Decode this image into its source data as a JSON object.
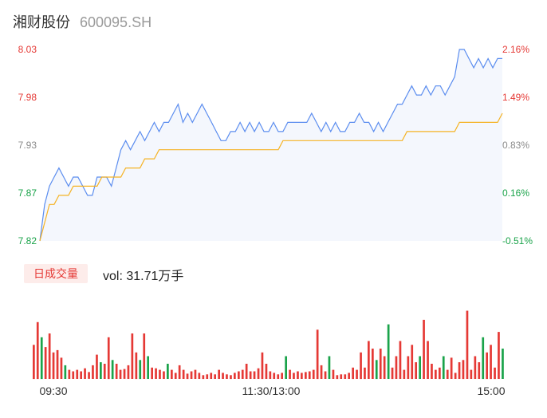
{
  "stock": {
    "name": "湘财股份",
    "code": "600095.SH"
  },
  "colors": {
    "up": "#e53935",
    "down": "#1aa34a",
    "flat": "#8a8a8a",
    "price_line": "#5b8def",
    "avg_line": "#f5b324",
    "area": "#f4f7fd"
  },
  "volume": {
    "tag": "日成交量",
    "label": "vol: 31.71万手"
  },
  "chart_data": {
    "type": "line",
    "y_left_ticks": [
      "8.03",
      "7.98",
      "7.93",
      "7.87",
      "7.82"
    ],
    "y_right_ticks": [
      "2.16%",
      "1.49%",
      "0.83%",
      "0.16%",
      "-0.51%"
    ],
    "y_right_colors": [
      "up",
      "up",
      "flat",
      "down",
      "down"
    ],
    "y_left_colors": [
      "up",
      "up",
      "flat",
      "down",
      "down"
    ],
    "x_ticks": [
      "09:30",
      "11:30/13:00",
      "15:00"
    ],
    "ylim": [
      7.82,
      8.03
    ],
    "series": [
      {
        "values": [
          7.82,
          7.86,
          7.88,
          7.89,
          7.9,
          7.89,
          7.88,
          7.89,
          7.89,
          7.88,
          7.87,
          7.87,
          7.89,
          7.89,
          7.89,
          7.88,
          7.9,
          7.92,
          7.93,
          7.92,
          7.93,
          7.94,
          7.93,
          7.94,
          7.95,
          7.94,
          7.95,
          7.95,
          7.96,
          7.97,
          7.95,
          7.96,
          7.95,
          7.96,
          7.97,
          7.96,
          7.95,
          7.94,
          7.93,
          7.93,
          7.94,
          7.94,
          7.95,
          7.94,
          7.95,
          7.94,
          7.95,
          7.94,
          7.94,
          7.95,
          7.94,
          7.94,
          7.95,
          7.95,
          7.95,
          7.95,
          7.95,
          7.96,
          7.95,
          7.94,
          7.95,
          7.94,
          7.95,
          7.94,
          7.94,
          7.95,
          7.95,
          7.96,
          7.95,
          7.95,
          7.94,
          7.95,
          7.94,
          7.95,
          7.96,
          7.97,
          7.97,
          7.98,
          7.99,
          7.98,
          7.98,
          7.99,
          7.98,
          7.99,
          7.99,
          7.98,
          7.99,
          8.0,
          8.03,
          8.03,
          8.02,
          8.01,
          8.02,
          8.01,
          8.02,
          8.01,
          8.02,
          8.02
        ]
      },
      {
        "values": [
          7.82,
          7.84,
          7.86,
          7.86,
          7.87,
          7.87,
          7.87,
          7.88,
          7.88,
          7.88,
          7.88,
          7.88,
          7.88,
          7.89,
          7.89,
          7.89,
          7.89,
          7.89,
          7.9,
          7.9,
          7.9,
          7.9,
          7.91,
          7.91,
          7.91,
          7.92,
          7.92,
          7.92,
          7.92,
          7.92,
          7.92,
          7.92,
          7.92,
          7.92,
          7.92,
          7.92,
          7.92,
          7.92,
          7.92,
          7.92,
          7.92,
          7.92,
          7.92,
          7.92,
          7.92,
          7.92,
          7.92,
          7.92,
          7.92,
          7.92,
          7.92,
          7.93,
          7.93,
          7.93,
          7.93,
          7.93,
          7.93,
          7.93,
          7.93,
          7.93,
          7.93,
          7.93,
          7.93,
          7.93,
          7.93,
          7.93,
          7.93,
          7.93,
          7.93,
          7.93,
          7.93,
          7.93,
          7.93,
          7.93,
          7.93,
          7.93,
          7.93,
          7.94,
          7.94,
          7.94,
          7.94,
          7.94,
          7.94,
          7.94,
          7.94,
          7.94,
          7.94,
          7.94,
          7.95,
          7.95,
          7.95,
          7.95,
          7.95,
          7.95,
          7.95,
          7.95,
          7.95,
          7.96
        ]
      }
    ],
    "volume_bars": [
      {
        "v": 0.45,
        "c": "up"
      },
      {
        "v": 0.75,
        "c": "up"
      },
      {
        "v": 0.55,
        "c": "down"
      },
      {
        "v": 0.42,
        "c": "up"
      },
      {
        "v": 0.6,
        "c": "up"
      },
      {
        "v": 0.35,
        "c": "up"
      },
      {
        "v": 0.38,
        "c": "up"
      },
      {
        "v": 0.28,
        "c": "up"
      },
      {
        "v": 0.18,
        "c": "down"
      },
      {
        "v": 0.12,
        "c": "up"
      },
      {
        "v": 0.1,
        "c": "up"
      },
      {
        "v": 0.12,
        "c": "up"
      },
      {
        "v": 0.1,
        "c": "up"
      },
      {
        "v": 0.14,
        "c": "up"
      },
      {
        "v": 0.09,
        "c": "up"
      },
      {
        "v": 0.18,
        "c": "up"
      },
      {
        "v": 0.32,
        "c": "up"
      },
      {
        "v": 0.22,
        "c": "down"
      },
      {
        "v": 0.2,
        "c": "up"
      },
      {
        "v": 0.55,
        "c": "up"
      },
      {
        "v": 0.25,
        "c": "down"
      },
      {
        "v": 0.2,
        "c": "up"
      },
      {
        "v": 0.12,
        "c": "up"
      },
      {
        "v": 0.13,
        "c": "up"
      },
      {
        "v": 0.18,
        "c": "up"
      },
      {
        "v": 0.6,
        "c": "up"
      },
      {
        "v": 0.35,
        "c": "up"
      },
      {
        "v": 0.25,
        "c": "down"
      },
      {
        "v": 0.6,
        "c": "up"
      },
      {
        "v": 0.3,
        "c": "down"
      },
      {
        "v": 0.15,
        "c": "up"
      },
      {
        "v": 0.14,
        "c": "up"
      },
      {
        "v": 0.12,
        "c": "up"
      },
      {
        "v": 0.1,
        "c": "up"
      },
      {
        "v": 0.2,
        "c": "down"
      },
      {
        "v": 0.12,
        "c": "up"
      },
      {
        "v": 0.08,
        "c": "up"
      },
      {
        "v": 0.18,
        "c": "up"
      },
      {
        "v": 0.12,
        "c": "up"
      },
      {
        "v": 0.07,
        "c": "up"
      },
      {
        "v": 0.1,
        "c": "up"
      },
      {
        "v": 0.12,
        "c": "up"
      },
      {
        "v": 0.08,
        "c": "up"
      },
      {
        "v": 0.05,
        "c": "up"
      },
      {
        "v": 0.06,
        "c": "up"
      },
      {
        "v": 0.08,
        "c": "up"
      },
      {
        "v": 0.06,
        "c": "up"
      },
      {
        "v": 0.12,
        "c": "up"
      },
      {
        "v": 0.08,
        "c": "up"
      },
      {
        "v": 0.06,
        "c": "up"
      },
      {
        "v": 0.05,
        "c": "up"
      },
      {
        "v": 0.08,
        "c": "up"
      },
      {
        "v": 0.1,
        "c": "up"
      },
      {
        "v": 0.12,
        "c": "up"
      },
      {
        "v": 0.2,
        "c": "up"
      },
      {
        "v": 0.1,
        "c": "up"
      },
      {
        "v": 0.1,
        "c": "up"
      },
      {
        "v": 0.14,
        "c": "up"
      },
      {
        "v": 0.35,
        "c": "up"
      },
      {
        "v": 0.2,
        "c": "up"
      },
      {
        "v": 0.1,
        "c": "up"
      },
      {
        "v": 0.08,
        "c": "up"
      },
      {
        "v": 0.06,
        "c": "up"
      },
      {
        "v": 0.08,
        "c": "up"
      },
      {
        "v": 0.3,
        "c": "down"
      },
      {
        "v": 0.12,
        "c": "up"
      },
      {
        "v": 0.08,
        "c": "up"
      },
      {
        "v": 0.1,
        "c": "up"
      },
      {
        "v": 0.08,
        "c": "up"
      },
      {
        "v": 0.09,
        "c": "up"
      },
      {
        "v": 0.1,
        "c": "up"
      },
      {
        "v": 0.12,
        "c": "up"
      },
      {
        "v": 0.65,
        "c": "up"
      },
      {
        "v": 0.18,
        "c": "up"
      },
      {
        "v": 0.1,
        "c": "up"
      },
      {
        "v": 0.3,
        "c": "down"
      },
      {
        "v": 0.12,
        "c": "up"
      },
      {
        "v": 0.05,
        "c": "up"
      },
      {
        "v": 0.06,
        "c": "up"
      },
      {
        "v": 0.06,
        "c": "up"
      },
      {
        "v": 0.08,
        "c": "up"
      },
      {
        "v": 0.15,
        "c": "up"
      },
      {
        "v": 0.12,
        "c": "up"
      },
      {
        "v": 0.35,
        "c": "up"
      },
      {
        "v": 0.15,
        "c": "up"
      },
      {
        "v": 0.5,
        "c": "up"
      },
      {
        "v": 0.4,
        "c": "up"
      },
      {
        "v": 0.25,
        "c": "down"
      },
      {
        "v": 0.4,
        "c": "up"
      },
      {
        "v": 0.3,
        "c": "up"
      },
      {
        "v": 0.72,
        "c": "down"
      },
      {
        "v": 0.15,
        "c": "up"
      },
      {
        "v": 0.3,
        "c": "up"
      },
      {
        "v": 0.5,
        "c": "up"
      },
      {
        "v": 0.12,
        "c": "up"
      },
      {
        "v": 0.3,
        "c": "up"
      },
      {
        "v": 0.45,
        "c": "up"
      },
      {
        "v": 0.22,
        "c": "up"
      },
      {
        "v": 0.3,
        "c": "down"
      },
      {
        "v": 0.78,
        "c": "up"
      },
      {
        "v": 0.5,
        "c": "up"
      },
      {
        "v": 0.2,
        "c": "up"
      },
      {
        "v": 0.12,
        "c": "up"
      },
      {
        "v": 0.15,
        "c": "up"
      },
      {
        "v": 0.3,
        "c": "down"
      },
      {
        "v": 0.12,
        "c": "up"
      },
      {
        "v": 0.28,
        "c": "up"
      },
      {
        "v": 0.08,
        "c": "up"
      },
      {
        "v": 0.22,
        "c": "up"
      },
      {
        "v": 0.25,
        "c": "up"
      },
      {
        "v": 0.9,
        "c": "up"
      },
      {
        "v": 0.12,
        "c": "up"
      },
      {
        "v": 0.3,
        "c": "up"
      },
      {
        "v": 0.22,
        "c": "up"
      },
      {
        "v": 0.55,
        "c": "down"
      },
      {
        "v": 0.35,
        "c": "up"
      },
      {
        "v": 0.45,
        "c": "up"
      },
      {
        "v": 0.15,
        "c": "up"
      },
      {
        "v": 0.62,
        "c": "up"
      },
      {
        "v": 0.4,
        "c": "down"
      }
    ]
  }
}
